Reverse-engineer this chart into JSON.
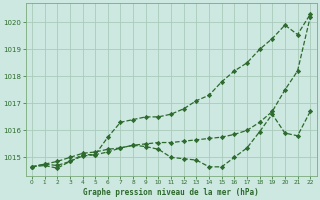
{
  "title": "Graphe pression niveau de la mer (hPa)",
  "bg_color": "#cce8e0",
  "grid_color": "#aaccbc",
  "line_color": "#2d6a2d",
  "x_min": -0.5,
  "x_max": 22.5,
  "y_min": 1014.3,
  "y_max": 1020.7,
  "series": [
    {
      "x": [
        0,
        1,
        2,
        3,
        4,
        5,
        6,
        7,
        8,
        9,
        10,
        11,
        12,
        13,
        14,
        15,
        16,
        17,
        18,
        19,
        20,
        21,
        22
      ],
      "y": [
        1014.65,
        1014.75,
        1014.7,
        1014.85,
        1015.05,
        1015.1,
        1015.75,
        1016.3,
        1016.4,
        1016.5,
        1016.5,
        1016.6,
        1016.8,
        1017.1,
        1017.3,
        1017.8,
        1018.2,
        1018.5,
        1019.0,
        1019.4,
        1019.9,
        1019.55,
        1020.3
      ]
    },
    {
      "x": [
        0,
        1,
        2,
        3,
        4,
        5,
        6,
        7,
        8,
        9,
        10,
        11,
        12,
        13,
        14,
        15,
        16,
        17,
        18,
        19,
        20,
        21,
        22
      ],
      "y": [
        1014.65,
        1014.75,
        1014.85,
        1015.0,
        1015.15,
        1015.2,
        1015.3,
        1015.35,
        1015.45,
        1015.5,
        1015.55,
        1015.55,
        1015.6,
        1015.65,
        1015.7,
        1015.75,
        1015.85,
        1016.0,
        1016.3,
        1016.7,
        1017.5,
        1018.2,
        1020.2
      ]
    },
    {
      "x": [
        0,
        1,
        2,
        3,
        4,
        5,
        6,
        7,
        8,
        9,
        10,
        11,
        12,
        13,
        14,
        15,
        16,
        17,
        18,
        19,
        20,
        21,
        22
      ],
      "y": [
        1014.65,
        1014.7,
        1014.6,
        1014.85,
        1015.1,
        1015.1,
        1015.2,
        1015.35,
        1015.45,
        1015.4,
        1015.3,
        1015.0,
        1014.95,
        1014.9,
        1014.65,
        1014.65,
        1015.0,
        1015.35,
        1015.95,
        1016.6,
        1015.9,
        1015.8,
        1016.7
      ]
    }
  ]
}
